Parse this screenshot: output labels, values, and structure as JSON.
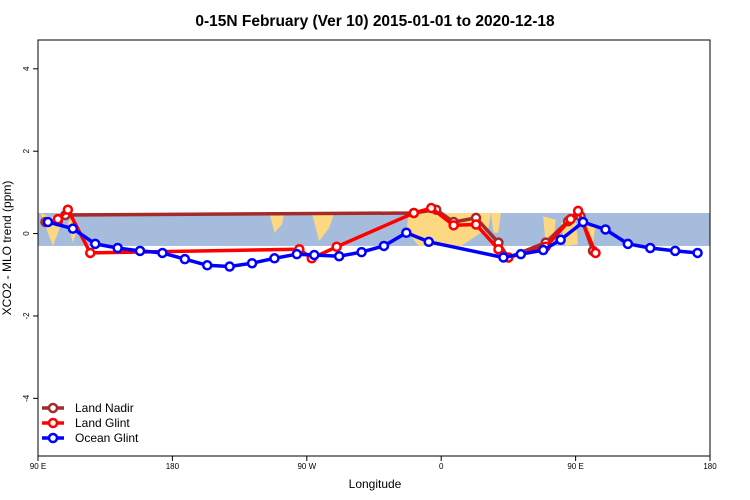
{
  "chart_data": {
    "type": "line",
    "title": "0-15N February (Ver 10)   2015-01-01 to 2020-12-18",
    "xlabel": "Longitude",
    "ylabel": "XCO2 - MLO trend (ppm)",
    "xlim": [
      -90,
      180
    ],
    "ylim": [
      -5.4,
      4.7
    ],
    "x_ticks": [
      {
        "value": -90,
        "label": "90 E"
      },
      {
        "value": -36,
        "label": "180"
      },
      {
        "value": 18,
        "label": "90 W"
      },
      {
        "value": 72,
        "label": "0"
      },
      {
        "value": 126,
        "label": "90 E"
      },
      {
        "value": 180,
        "label": "180"
      }
    ],
    "y_ticks": [
      -4,
      -2,
      0,
      2,
      4
    ],
    "grid": false,
    "legend_position": "bottom-left",
    "latitude_band": {
      "y_min": -0.3,
      "y_max": 0.5,
      "color": "#a5bcdc",
      "land_color": "#fcd882"
    },
    "series": [
      {
        "name": "Land Nadir",
        "color": "#a52a2a",
        "points": [
          {
            "x": -87,
            "y": 0.28
          },
          {
            "x": -82,
            "y": 0.3
          },
          {
            "x": -79,
            "y": 0.45
          },
          {
            "x": 61,
            "y": 0.5
          },
          {
            "x": 70,
            "y": 0.58
          },
          {
            "x": 77,
            "y": 0.28
          },
          {
            "x": 86,
            "y": 0.38
          },
          {
            "x": 95,
            "y": -0.22
          },
          {
            "x": 99,
            "y": -0.58
          },
          {
            "x": 114,
            "y": -0.22
          },
          {
            "x": 123,
            "y": 0.3
          },
          {
            "x": 128,
            "y": 0.42
          },
          {
            "x": 133,
            "y": -0.42
          }
        ]
      },
      {
        "name": "Land Glint",
        "color": "#ff0000",
        "points": [
          {
            "x": -82,
            "y": 0.35
          },
          {
            "x": -78,
            "y": 0.58
          },
          {
            "x": -69,
            "y": -0.47
          },
          {
            "x": 15,
            "y": -0.38
          },
          {
            "x": 20,
            "y": -0.6
          },
          {
            "x": 30,
            "y": -0.32
          },
          {
            "x": 61,
            "y": 0.5
          },
          {
            "x": 68,
            "y": 0.62
          },
          {
            "x": 77,
            "y": 0.2
          },
          {
            "x": 86,
            "y": 0.22
          },
          {
            "x": 95,
            "y": -0.38
          },
          {
            "x": 99,
            "y": -0.58
          },
          {
            "x": 114,
            "y": -0.32
          },
          {
            "x": 124,
            "y": 0.35
          },
          {
            "x": 127,
            "y": 0.55
          },
          {
            "x": 134,
            "y": -0.47
          }
        ]
      },
      {
        "name": "Ocean Glint",
        "color": "#0000ff",
        "points": [
          {
            "x": -86,
            "y": 0.28
          },
          {
            "x": -76,
            "y": 0.12
          },
          {
            "x": -67,
            "y": -0.25
          },
          {
            "x": -58,
            "y": -0.35
          },
          {
            "x": -49,
            "y": -0.42
          },
          {
            "x": -40,
            "y": -0.47
          },
          {
            "x": -31,
            "y": -0.62
          },
          {
            "x": -22,
            "y": -0.77
          },
          {
            "x": -13,
            "y": -0.8
          },
          {
            "x": -4,
            "y": -0.72
          },
          {
            "x": 5,
            "y": -0.6
          },
          {
            "x": 14,
            "y": -0.5
          },
          {
            "x": 21,
            "y": -0.52
          },
          {
            "x": 31,
            "y": -0.55
          },
          {
            "x": 40,
            "y": -0.45
          },
          {
            "x": 49,
            "y": -0.3
          },
          {
            "x": 58,
            "y": 0.02
          },
          {
            "x": 67,
            "y": -0.2
          },
          {
            "x": 97,
            "y": -0.58
          },
          {
            "x": 104,
            "y": -0.5
          },
          {
            "x": 113,
            "y": -0.4
          },
          {
            "x": 120,
            "y": -0.15
          },
          {
            "x": 129,
            "y": 0.28
          },
          {
            "x": 138,
            "y": 0.1
          },
          {
            "x": 147,
            "y": -0.25
          },
          {
            "x": 156,
            "y": -0.35
          },
          {
            "x": 166,
            "y": -0.42
          },
          {
            "x": 175,
            "y": -0.47
          }
        ]
      }
    ]
  }
}
